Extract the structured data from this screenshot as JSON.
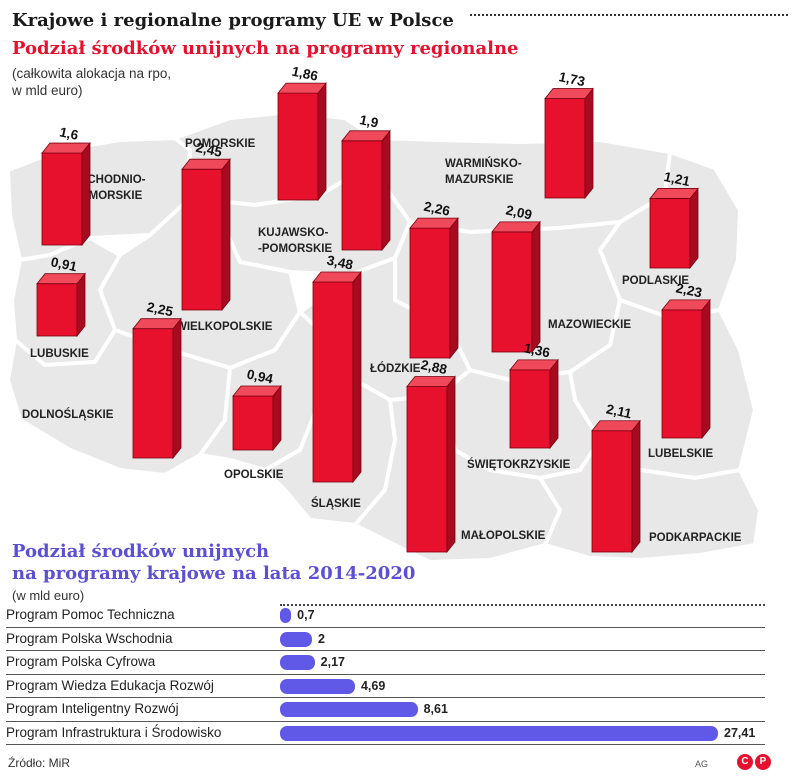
{
  "header": {
    "title": "Krajowe i regionalne programy UE w Polsce",
    "map_title": "Podział środków unijnych na programy regionalne",
    "map_note_line1": "(całkowita alokacja na rpo,",
    "map_note_line2": "w mld euro)",
    "bar_title_line1": "Podział środków unijnych",
    "bar_title_line2": "na programy krajowe na lata 2014-2020",
    "bar_note": "(w mld euro)"
  },
  "colors": {
    "bar_front": "#e8112d",
    "bar_side": "#a70b1f",
    "bar_top": "#f04a5a",
    "hbar": "#6059e8",
    "map": "#e8e8e8"
  },
  "chart_data": [
    {
      "type": "bar",
      "title": "Podział środków unijnych na programy regionalne",
      "ylabel": "mld euro",
      "categories": [
        "ZACHODNIO-POMORSKIE",
        "POMORSKIE",
        "WARMIŃSKO-MAZURSKIE",
        "PODLASKIE",
        "KUJAWSKO-POMORSKIE",
        "WIELKOPOLSKIE",
        "LUBUSKIE",
        "MAZOWIECKIE",
        "ŁÓDZKIE",
        "LUBELSKIE",
        "DOLNOŚLĄSKIE",
        "OPOLSKIE",
        "ŚLĄSKIE",
        "ŚWIĘTOKRZYSKIE",
        "MAŁOPOLSKIE",
        "PODKARPACKIE"
      ],
      "labels": [
        "1,6",
        "1,86",
        "1,73",
        "1,21",
        "1,9",
        "2,45",
        "0,91",
        "2,09",
        "2,26",
        "2,23",
        "2,25",
        "0,94",
        "3,48",
        "1,36",
        "2,88",
        "2,11"
      ],
      "values": [
        1.6,
        1.86,
        1.73,
        1.21,
        1.9,
        2.45,
        0.91,
        2.09,
        2.26,
        2.23,
        2.25,
        0.94,
        3.48,
        1.36,
        2.88,
        2.11
      ]
    },
    {
      "type": "bar",
      "orientation": "horizontal",
      "title": "Podział środków unijnych na programy krajowe na lata 2014-2020",
      "xlabel": "mld euro",
      "categories": [
        "Program Pomoc Techniczna",
        "Program Polska Wschodnia",
        "Program Polska Cyfrowa",
        "Program Wiedza Edukacja Rozwój",
        "Program Inteligentny Rozwój",
        "Program Infrastruktura i Środowisko"
      ],
      "labels": [
        "0,7",
        "2",
        "2,17",
        "4,69",
        "8,61",
        "27,41"
      ],
      "values": [
        0.7,
        2,
        2.17,
        4.69,
        8.61,
        27.41
      ],
      "xlim": [
        0,
        27.41
      ]
    }
  ],
  "map_region_label_lines": {
    "ZACHODNIO-POMORSKIE": [
      "ZACHODNIO-",
      "POMORSKIE"
    ],
    "WARMIŃSKO-MAZURSKIE": [
      "WARMIŃSKO-",
      "MAZURSKIE"
    ],
    "KUJAWSKO-POMORSKIE": [
      "KUJAWSKO-",
      "-POMORSKIE"
    ]
  },
  "footer": {
    "source": "Źródło: MiR",
    "author": "AG",
    "logo": [
      "C",
      "P"
    ]
  }
}
